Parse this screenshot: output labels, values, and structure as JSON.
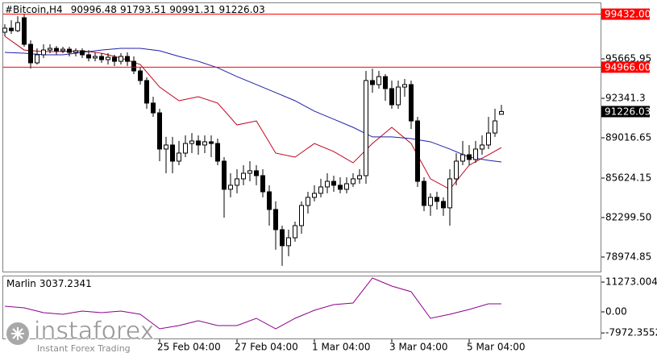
{
  "header": {
    "symbol": "#Bitcoin,H4"
  },
  "watermark": {
    "brand": "instaforex",
    "tagline": "Instant Forex Trading"
  },
  "chart_data": [
    {
      "type": "candlestick",
      "open": [
        97910,
        98250,
        98040,
        99130,
        96890,
        95330,
        96010,
        96410,
        96550,
        96350,
        96480,
        96210,
        96350,
        96010,
        95740,
        95870,
        95600,
        95800,
        95460,
        95870,
        95460,
        94650,
        93840,
        91940,
        91120,
        88070,
        88410,
        87050,
        87730,
        88540,
        88750,
        88410,
        88680,
        88540,
        87050,
        84680,
        85020,
        85560,
        86030,
        86240,
        85830,
        84470,
        82980,
        81280,
        79930,
        80600,
        81620,
        83320,
        84000,
        84340,
        84880,
        85350,
        85020,
        84680,
        85150,
        85560,
        85830,
        93840,
        93500,
        94170,
        93160,
        91800,
        93290,
        93500,
        90440,
        85350,
        83320,
        84000,
        83660,
        83120,
        85560,
        87050,
        87590,
        87190,
        88070,
        88410,
        89420,
        90996.48
      ],
      "high": [
        98580,
        98920,
        99260,
        99400,
        97230,
        96550,
        96890,
        96890,
        96750,
        96690,
        96690,
        96550,
        96550,
        96410,
        96210,
        96140,
        96140,
        96010,
        96140,
        96210,
        95870,
        94920,
        94110,
        92480,
        91460,
        89090,
        89090,
        88750,
        89220,
        89420,
        89220,
        89220,
        89220,
        88950,
        87390,
        86030,
        86370,
        86710,
        87050,
        86710,
        86370,
        85020,
        83660,
        81620,
        81280,
        81960,
        83660,
        84470,
        85020,
        85560,
        86030,
        85830,
        85690,
        85690,
        86030,
        86370,
        94650,
        94850,
        94650,
        94380,
        93840,
        93840,
        93970,
        93840,
        90780,
        85690,
        84340,
        84470,
        84000,
        86370,
        87730,
        88750,
        88410,
        88750,
        89220,
        90780,
        91460,
        91793.51
      ],
      "low": [
        97570,
        97770,
        97910,
        96690,
        94850,
        95190,
        95740,
        96140,
        96010,
        96140,
        95870,
        95870,
        95740,
        95460,
        95460,
        95330,
        95190,
        95060,
        95190,
        95060,
        94380,
        93500,
        91460,
        90780,
        87050,
        86030,
        86030,
        86710,
        87390,
        87730,
        87590,
        87730,
        87390,
        86710,
        82300,
        84000,
        84340,
        85020,
        85350,
        85020,
        84000,
        81620,
        79590,
        78230,
        79040,
        80270,
        80940,
        82640,
        83660,
        84000,
        84340,
        84470,
        84340,
        84340,
        84880,
        85150,
        85150,
        92820,
        93160,
        92140,
        91460,
        91460,
        92480,
        89760,
        84880,
        82840,
        82440,
        82980,
        82440,
        81620,
        85020,
        86710,
        86710,
        86910,
        87590,
        88070,
        89090,
        90991.31
      ],
      "close": [
        98250,
        98040,
        98720,
        96890,
        95330,
        96010,
        96410,
        96550,
        96350,
        96480,
        96210,
        96350,
        96010,
        95740,
        95870,
        95600,
        95800,
        95460,
        95870,
        95460,
        94650,
        93840,
        91940,
        91120,
        88070,
        88410,
        87050,
        87730,
        88540,
        88750,
        88410,
        88680,
        88540,
        87050,
        84680,
        85020,
        85560,
        86030,
        86240,
        85830,
        84470,
        82980,
        81280,
        79930,
        80600,
        81620,
        83320,
        84000,
        84340,
        84880,
        85350,
        85020,
        84680,
        85150,
        85560,
        85830,
        93840,
        93500,
        94170,
        93160,
        91800,
        93290,
        93500,
        90440,
        85350,
        83320,
        84000,
        83660,
        83120,
        85560,
        87050,
        87590,
        87190,
        88070,
        88410,
        89420,
        90440,
        91226.03
      ],
      "ylim": [
        77750,
        100420
      ],
      "yticks": [
        95665.95,
        92341.3,
        89016.65,
        85624.15,
        {
          "value": 82299.5,
          "label": "82299.50"
        },
        78974.85
      ],
      "xticks": [
        {
          "value": 24,
          "label": "25 Feb 04:00"
        },
        {
          "value": 36,
          "label": "27 Feb 04:00"
        },
        {
          "value": 48,
          "label": "1 Mar 04:00"
        },
        {
          "value": 60,
          "label": "3 Mar 04:00"
        },
        {
          "value": 72,
          "label": "5 Mar 04:00"
        }
      ],
      "levels": [
        {
          "value": 99432,
          "label": "99432.00",
          "color": "#ff0000"
        },
        {
          "value": 94966,
          "label": "94966.00",
          "color": "#ff0000"
        }
      ],
      "lines": [
        {
          "color": "#c0001a",
          "x": [
            0,
            3,
            6,
            9,
            12,
            15,
            18,
            21,
            24,
            27,
            30,
            33,
            36,
            39,
            42,
            45,
            48,
            51,
            54,
            57,
            60,
            63,
            66,
            69,
            72,
            75,
            77
          ],
          "values": [
            97570,
            96410,
            96280,
            96280,
            96350,
            96140,
            95740,
            95190,
            93290,
            92140,
            92480,
            91940,
            90100,
            90440,
            87730,
            87390,
            88540,
            87860,
            86910,
            88540,
            89900,
            88540,
            85560,
            84680,
            86710,
            87590,
            88200
          ]
        },
        {
          "color": "#1f1fa8",
          "x": [
            0,
            3,
            6,
            9,
            12,
            15,
            18,
            21,
            24,
            27,
            30,
            33,
            36,
            39,
            42,
            45,
            48,
            51,
            54,
            57,
            60,
            63,
            66,
            69,
            72,
            75,
            77
          ],
          "values": [
            96210,
            96140,
            96010,
            96010,
            96210,
            96410,
            96550,
            96550,
            96350,
            95870,
            95460,
            94920,
            94170,
            93500,
            92820,
            92140,
            91260,
            90580,
            89900,
            89090,
            89090,
            88950,
            88680,
            88070,
            87390,
            87120,
            86980
          ]
        }
      ]
    },
    {
      "type": "line",
      "name": "Marlin",
      "color": "#8b008b",
      "x": [
        0,
        3,
        6,
        9,
        12,
        15,
        18,
        21,
        24,
        27,
        30,
        33,
        36,
        39,
        42,
        45,
        48,
        51,
        54,
        57,
        60,
        63,
        66,
        69,
        72,
        75,
        77
      ],
      "values": [
        2140,
        1530,
        -310,
        -920,
        310,
        -310,
        310,
        -920,
        -6410,
        -5190,
        -3360,
        -5190,
        -5190,
        -2440,
        -6410,
        -2440,
        610,
        2750,
        3360,
        12810,
        9760,
        7630,
        -2440,
        -920,
        910,
        3050,
        3037.2341
      ],
      "ylim": [
        -10070,
        13420
      ],
      "yticks": [
        11273.0044,
        {
          "value": 0,
          "label": "0.00"
        },
        -7972.3552
      ]
    }
  ]
}
